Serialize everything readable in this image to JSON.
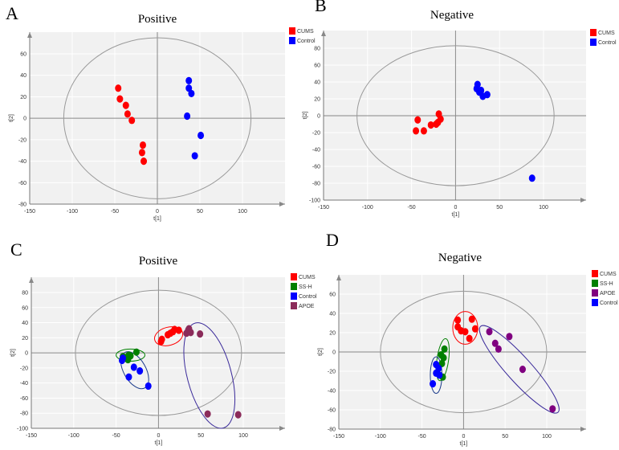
{
  "chart_data": [
    {
      "panel": "A",
      "type": "scatter",
      "title": "Positive",
      "xlabel": "t[1]",
      "ylabel": "t[2]",
      "xlim": [
        -150,
        150
      ],
      "ylim": [
        -80,
        80
      ],
      "xticks": [
        -150,
        -100,
        -50,
        0,
        50,
        100
      ],
      "yticks": [
        -80,
        -60,
        -40,
        -20,
        0,
        20,
        40,
        60
      ],
      "series": [
        {
          "name": "CUMS",
          "color": "#ff0000",
          "points": [
            [
              -46,
              28
            ],
            [
              -44,
              18
            ],
            [
              -37,
              12
            ],
            [
              -35,
              4
            ],
            [
              -30,
              -2
            ],
            [
              -17,
              -25
            ],
            [
              -18,
              -32
            ],
            [
              -16,
              -40
            ]
          ]
        },
        {
          "name": "Control",
          "color": "#0000ff",
          "points": [
            [
              37,
              35
            ],
            [
              37,
              28
            ],
            [
              40,
              23
            ],
            [
              35,
              2
            ],
            [
              51,
              -16
            ],
            [
              44,
              -35
            ]
          ]
        }
      ],
      "ellipses": [
        {
          "name": "hotelling-t2",
          "color": "#999999",
          "cx": 0,
          "cy": 0,
          "rx": 110,
          "ry": 75,
          "rot": 0
        }
      ]
    },
    {
      "panel": "B",
      "type": "scatter",
      "title": "Negative",
      "xlabel": "t[1]",
      "ylabel": "t[2]",
      "xlim": [
        -150,
        150
      ],
      "ylim": [
        -100,
        100
      ],
      "xticks": [
        -150,
        -100,
        -50,
        0,
        50,
        100
      ],
      "yticks": [
        -100,
        -80,
        -60,
        -40,
        -20,
        0,
        20,
        40,
        60,
        80
      ],
      "series": [
        {
          "name": "CUMS",
          "color": "#ff0000",
          "points": [
            [
              -43,
              -5
            ],
            [
              -45,
              -18
            ],
            [
              -36,
              -18
            ],
            [
              -28,
              -11
            ],
            [
              -22,
              -10
            ],
            [
              -19,
              2
            ],
            [
              -17,
              -4
            ],
            [
              -20,
              -8
            ]
          ]
        },
        {
          "name": "Control",
          "color": "#0000ff",
          "points": [
            [
              25,
              37
            ],
            [
              24,
              32
            ],
            [
              27,
              28
            ],
            [
              31,
              23
            ],
            [
              36,
              25
            ],
            [
              29,
              30
            ],
            [
              87,
              -74
            ]
          ]
        }
      ],
      "ellipses": [
        {
          "name": "hotelling-t2",
          "color": "#999999",
          "cx": 0,
          "cy": 0,
          "rx": 112,
          "ry": 83,
          "rot": 0
        }
      ]
    },
    {
      "panel": "C",
      "type": "scatter",
      "title": "Positive",
      "xlabel": "t[1]",
      "ylabel": "t[2]",
      "xlim": [
        -150,
        150
      ],
      "ylim": [
        -100,
        100
      ],
      "xticks": [
        -150,
        -100,
        -50,
        0,
        50,
        100
      ],
      "yticks": [
        -100,
        -80,
        -60,
        -40,
        -20,
        0,
        20,
        40,
        60,
        80
      ],
      "series": [
        {
          "name": "CUMS",
          "color": "#ff0000",
          "points": [
            [
              3,
              15
            ],
            [
              4,
              18
            ],
            [
              11,
              24
            ],
            [
              14,
              26
            ],
            [
              17,
              28
            ],
            [
              19,
              31
            ],
            [
              24,
              30
            ]
          ]
        },
        {
          "name": "SS-H",
          "color": "#008000",
          "points": [
            [
              -42,
              -5
            ],
            [
              -38,
              -7
            ],
            [
              -35,
              -3
            ],
            [
              -33,
              -4
            ],
            [
              -26,
              1
            ],
            [
              -36,
              -9
            ],
            [
              -40,
              -6
            ]
          ]
        },
        {
          "name": "Control",
          "color": "#0000ff",
          "points": [
            [
              -43,
              -10
            ],
            [
              -29,
              -19
            ],
            [
              -22,
              -24
            ],
            [
              -35,
              -32
            ],
            [
              -12,
              -44
            ],
            [
              -42,
              -7
            ]
          ]
        },
        {
          "name": "APOE",
          "color": "#8b2b5a",
          "points": [
            [
              33,
              26
            ],
            [
              35,
              30
            ],
            [
              36,
              32
            ],
            [
              38,
              27
            ],
            [
              49,
              25
            ],
            [
              58,
              -81
            ],
            [
              94,
              -82
            ]
          ]
        }
      ],
      "ellipses": [
        {
          "name": "hotelling-t2",
          "color": "#999999",
          "cx": 0,
          "cy": 0,
          "rx": 98,
          "ry": 83,
          "rot": 0
        },
        {
          "name": "CUMS",
          "color": "#ff0000",
          "cx": 12,
          "cy": 22,
          "rx": 17,
          "ry": 12,
          "rot": -15
        },
        {
          "name": "SS-H",
          "color": "#008000",
          "cx": -33,
          "cy": -3,
          "rx": 17,
          "ry": 8,
          "rot": 0
        },
        {
          "name": "Control",
          "color": "#1a3a8a",
          "cx": -28,
          "cy": -23,
          "rx": 13,
          "ry": 27,
          "rot": -30
        },
        {
          "name": "APOE",
          "color": "#3a2a9a",
          "cx": 60,
          "cy": -30,
          "rx": 26,
          "ry": 72,
          "rot": -15
        }
      ]
    },
    {
      "panel": "D",
      "type": "scatter",
      "title": "Negative",
      "xlabel": "t[1]",
      "ylabel": "t[2]",
      "xlim": [
        -150,
        150
      ],
      "ylim": [
        -80,
        80
      ],
      "xticks": [
        -150,
        -100,
        -50,
        0,
        50,
        100
      ],
      "yticks": [
        -80,
        -60,
        -40,
        -20,
        0,
        20,
        40,
        60
      ],
      "series": [
        {
          "name": "CUMS",
          "color": "#ff0000",
          "points": [
            [
              -7,
              33
            ],
            [
              -7,
              26
            ],
            [
              -3,
              22
            ],
            [
              2,
              21
            ],
            [
              10,
              34
            ],
            [
              14,
              24
            ],
            [
              7,
              14
            ]
          ]
        },
        {
          "name": "SS-H",
          "color": "#008000",
          "points": [
            [
              -23,
              3
            ],
            [
              -27,
              -3
            ],
            [
              -24,
              -6
            ],
            [
              -26,
              -12
            ],
            [
              -25,
              -26
            ]
          ]
        },
        {
          "name": "APOE",
          "color": "#800080",
          "points": [
            [
              31,
              21
            ],
            [
              38,
              9
            ],
            [
              42,
              3
            ],
            [
              55,
              16
            ],
            [
              71,
              -18
            ],
            [
              107,
              -59
            ]
          ]
        },
        {
          "name": "Control",
          "color": "#0000ff",
          "points": [
            [
              -33,
              -13
            ],
            [
              -30,
              -17
            ],
            [
              -33,
              -22
            ],
            [
              -29,
              -24
            ],
            [
              -37,
              -33
            ]
          ]
        }
      ],
      "ellipses": [
        {
          "name": "hotelling-t2",
          "color": "#999999",
          "cx": 0,
          "cy": 0,
          "rx": 100,
          "ry": 63,
          "rot": 0
        },
        {
          "name": "CUMS",
          "color": "#ff0000",
          "cx": 2,
          "cy": 25,
          "rx": 15,
          "ry": 17,
          "rot": 0
        },
        {
          "name": "SS-H",
          "color": "#008000",
          "cx": -25,
          "cy": -8,
          "rx": 7,
          "ry": 22,
          "rot": 8
        },
        {
          "name": "Control",
          "color": "#1a3a8a",
          "cx": -33,
          "cy": -24,
          "rx": 7,
          "ry": 19,
          "rot": 0
        },
        {
          "name": "APOE",
          "color": "#3a2a9a",
          "cx": 67,
          "cy": -18,
          "rx": 15,
          "ry": 60,
          "rot": -42
        }
      ]
    }
  ]
}
